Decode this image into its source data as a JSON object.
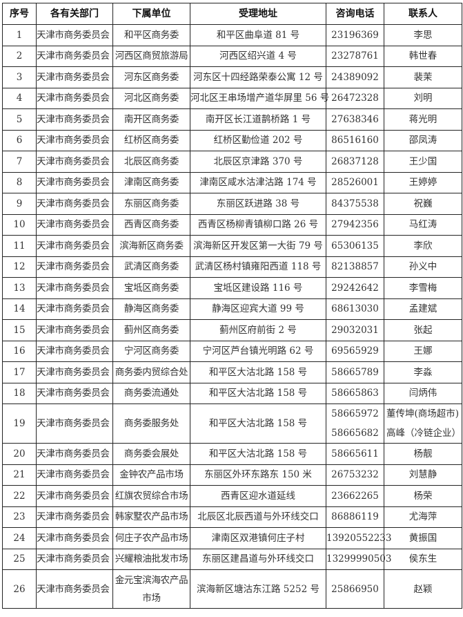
{
  "headers": [
    "序号",
    "各有关部门",
    "下属单位",
    "受理地址",
    "咨询电话",
    "联系人"
  ],
  "rows": [
    {
      "no": "1",
      "dept": "天津市商务委员会",
      "unit": "和平区商务委",
      "address": "和平区曲阜道 81 号",
      "phone": [
        "23196369"
      ],
      "contact": [
        "李思"
      ]
    },
    {
      "no": "2",
      "dept": "天津市商务委员会",
      "unit": "河西区商贸旅游局",
      "address": "河西区绍兴道 4 号",
      "phone": [
        "23278761"
      ],
      "contact": [
        "韩世春"
      ]
    },
    {
      "no": "3",
      "dept": "天津市商务委员会",
      "unit": "河东区商务委",
      "address": "河东区十四经路荣泰公寓 12 号",
      "phone": [
        "24389092"
      ],
      "contact": [
        "裴茉"
      ]
    },
    {
      "no": "4",
      "dept": "天津市商务委员会",
      "unit": "河北区商务委",
      "address": "河北区王串场增产道华屏里 56 号",
      "phone": [
        "26472328"
      ],
      "contact": [
        "刘明"
      ]
    },
    {
      "no": "5",
      "dept": "天津市商务委员会",
      "unit": "南开区商务委",
      "address": "南开区长江道鹊桥路 1 号",
      "phone": [
        "27638346"
      ],
      "contact": [
        "蒋光明"
      ]
    },
    {
      "no": "6",
      "dept": "天津市商务委员会",
      "unit": "红桥区商务委",
      "address": "红桥区勤俭道 202 号",
      "phone": [
        "86516160"
      ],
      "contact": [
        "邵凤涛"
      ]
    },
    {
      "no": "7",
      "dept": "天津市商务委员会",
      "unit": "北辰区商务委",
      "address": "北辰区京津路 370 号",
      "phone": [
        "26837128"
      ],
      "contact": [
        "王少国"
      ]
    },
    {
      "no": "8",
      "dept": "天津市商务委员会",
      "unit": "津南区商务委",
      "address": "津南区咸水沽津沽路 174 号",
      "phone": [
        "28526001"
      ],
      "contact": [
        "王婷婷"
      ]
    },
    {
      "no": "9",
      "dept": "天津市商务委员会",
      "unit": "东丽区商务委",
      "address": "东丽区跃进路 38 号",
      "phone": [
        "84375538"
      ],
      "contact": [
        "祝巍"
      ]
    },
    {
      "no": "10",
      "dept": "天津市商务委员会",
      "unit": "西青区商务委",
      "address": "西青区杨柳青镇柳口路 26 号",
      "phone": [
        "27942356"
      ],
      "contact": [
        "马红涛"
      ]
    },
    {
      "no": "11",
      "dept": "天津市商务委员会",
      "unit": "滨海新区商务委",
      "address": "滨海新区开发区第一大街 79 号",
      "phone": [
        "65306135"
      ],
      "contact": [
        "李欣"
      ]
    },
    {
      "no": "12",
      "dept": "天津市商务委员会",
      "unit": "武清区商务委",
      "address": "武清区杨村镇雍阳西道 118 号",
      "phone": [
        "82138857"
      ],
      "contact": [
        "孙义中"
      ]
    },
    {
      "no": "13",
      "dept": "天津市商务委员会",
      "unit": "宝坻区商务委",
      "address": "宝坻区建设路 116 号",
      "phone": [
        "29242642"
      ],
      "contact": [
        "李雪梅"
      ]
    },
    {
      "no": "14",
      "dept": "天津市商务委员会",
      "unit": "静海区商务委",
      "address": "静海区迎宾大道 99 号",
      "phone": [
        "68613030"
      ],
      "contact": [
        "孟建斌"
      ]
    },
    {
      "no": "15",
      "dept": "天津市商务委员会",
      "unit": "蓟州区商务委",
      "address": "蓟州区府前街 2 号",
      "phone": [
        "29032031"
      ],
      "contact": [
        "张起"
      ]
    },
    {
      "no": "16",
      "dept": "天津市商务委员会",
      "unit": "宁河区商务委",
      "address": "宁河区芦台镇光明路 62 号",
      "phone": [
        "69565929"
      ],
      "contact": [
        "王娜"
      ]
    },
    {
      "no": "17",
      "dept": "天津市商务委员会",
      "unit": "商务委内贸综合处",
      "address": "和平区大沽北路 158 号",
      "phone": [
        "58665789"
      ],
      "contact": [
        "李淼"
      ]
    },
    {
      "no": "18",
      "dept": "天津市商务委员会",
      "unit": "商务委流通处",
      "address": "和平区大沽北路 158 号",
      "phone": [
        "58665863"
      ],
      "contact": [
        "闫炳伟"
      ]
    },
    {
      "no": "19",
      "dept": "天津市商务委员会",
      "unit": "商务委服务处",
      "address": "和平区大沽北路 158 号",
      "phone": [
        "58665972",
        "58665682"
      ],
      "contact": [
        "董传坤(商场超市)",
        "高峰（冷链企业）"
      ]
    },
    {
      "no": "20",
      "dept": "天津市商务委员会",
      "unit": "商务委会展处",
      "address": "和平区大沽北路 158 号",
      "phone": [
        "58665611"
      ],
      "contact": [
        "杨靓"
      ]
    },
    {
      "no": "21",
      "dept": "天津市商务委员会",
      "unit": "金钟农产品市场",
      "address": "东丽区外环东路东 150 米",
      "phone": [
        "26753232"
      ],
      "contact": [
        "刘慧静"
      ]
    },
    {
      "no": "22",
      "dept": "天津市商务委员会",
      "unit": "红旗农贸综合市场",
      "address": "西青区迎水道延线",
      "phone": [
        "23662265"
      ],
      "contact": [
        "杨荣"
      ]
    },
    {
      "no": "23",
      "dept": "天津市商务委员会",
      "unit": "韩家墅农产品市场",
      "address": "北辰区北辰西道与外环线交口",
      "phone": [
        "86886119"
      ],
      "contact": [
        "尤海萍"
      ]
    },
    {
      "no": "24",
      "dept": "天津市商务委员会",
      "unit": "何庄子农产品市场",
      "address": "津南区双港镇何庄子村",
      "phone": [
        "13920552233"
      ],
      "contact": [
        "黄振国"
      ]
    },
    {
      "no": "25",
      "dept": "天津市商务委员会",
      "unit": "兴耀粮油批发市场",
      "address": "东丽区建昌道与外环线交口",
      "phone": [
        "13299990503"
      ],
      "contact": [
        "侯东生"
      ]
    },
    {
      "no": "26",
      "dept": "天津市商务委员会",
      "unit": "金元宝滨海农产品市场",
      "address": "滨海新区塘沽东江路 5252 号",
      "phone": [
        "25866950"
      ],
      "contact": [
        "赵颖"
      ]
    }
  ]
}
